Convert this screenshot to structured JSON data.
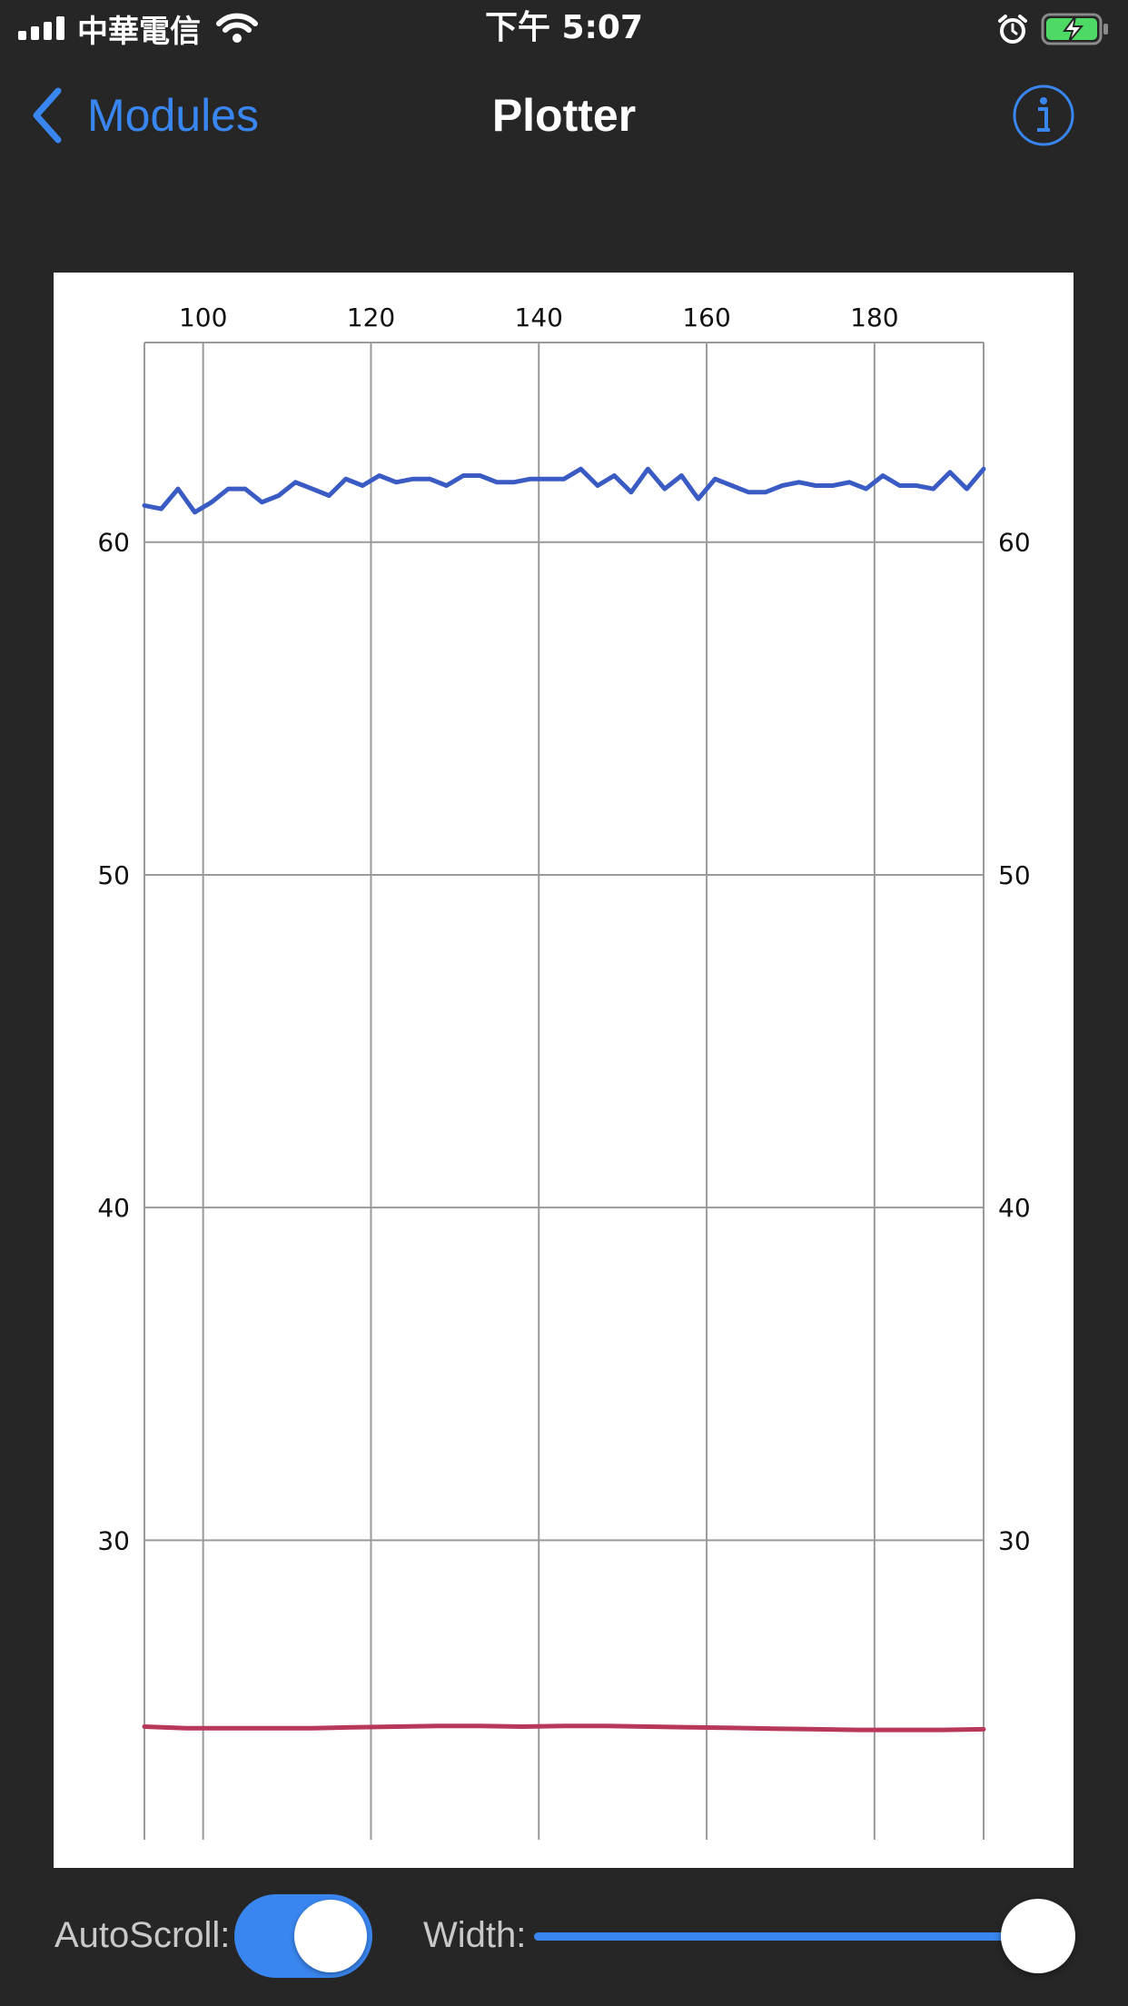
{
  "status_bar": {
    "carrier": "中華電信",
    "time": "下午 5:07"
  },
  "nav": {
    "back_label": "Modules",
    "title": "Plotter"
  },
  "colors": {
    "accent": "#3a86f0",
    "series_1": "#3a5bc4",
    "series_2": "#b8385a"
  },
  "icons": {
    "back": "chevron-left-icon",
    "info": "info-circle-icon",
    "alarm": "alarm-icon",
    "battery": "battery-charging-icon",
    "wifi": "wifi-icon",
    "signal": "cellular-signal-icon"
  },
  "controls": {
    "autoscroll_label": "AutoScroll:",
    "autoscroll_on": true,
    "width_label": "Width:",
    "width_value": 1.0
  },
  "chart_data": {
    "type": "line",
    "xlim": [
      93,
      193
    ],
    "ylim": [
      21,
      66
    ],
    "x_ticks": [
      100,
      120,
      140,
      160,
      180
    ],
    "y_ticks": [
      30,
      40,
      50,
      60
    ],
    "grid": true,
    "series": [
      {
        "x": [
          93,
          95,
          97,
          99,
          101,
          103,
          105,
          107,
          109,
          111,
          113,
          115,
          117,
          119,
          121,
          123,
          125,
          127,
          129,
          131,
          133,
          135,
          137,
          139,
          141,
          143,
          145,
          147,
          149,
          151,
          153,
          155,
          157,
          159,
          161,
          163,
          165,
          167,
          169,
          171,
          173,
          175,
          177,
          179,
          181,
          183,
          185,
          187,
          189,
          191,
          193
        ],
        "values": [
          61.1,
          61.0,
          61.6,
          60.9,
          61.2,
          61.6,
          61.6,
          61.2,
          61.4,
          61.8,
          61.6,
          61.4,
          61.9,
          61.7,
          62.0,
          61.8,
          61.9,
          61.9,
          61.7,
          62.0,
          62.0,
          61.8,
          61.8,
          61.9,
          61.9,
          61.9,
          62.2,
          61.7,
          62.0,
          61.5,
          62.2,
          61.6,
          62.0,
          61.3,
          61.9,
          61.7,
          61.5,
          61.5,
          61.7,
          61.8,
          61.7,
          61.7,
          61.8,
          61.6,
          62.0,
          61.7,
          61.7,
          61.6,
          62.1,
          61.6,
          62.2
        ]
      },
      {
        "x": [
          93,
          98,
          103,
          108,
          113,
          118,
          123,
          128,
          133,
          138,
          143,
          148,
          153,
          158,
          163,
          168,
          173,
          178,
          183,
          188,
          193
        ],
        "values": [
          24.4,
          24.35,
          24.35,
          24.35,
          24.35,
          24.38,
          24.4,
          24.42,
          24.42,
          24.4,
          24.42,
          24.42,
          24.4,
          24.38,
          24.36,
          24.34,
          24.32,
          24.3,
          24.3,
          24.3,
          24.32
        ]
      }
    ]
  }
}
